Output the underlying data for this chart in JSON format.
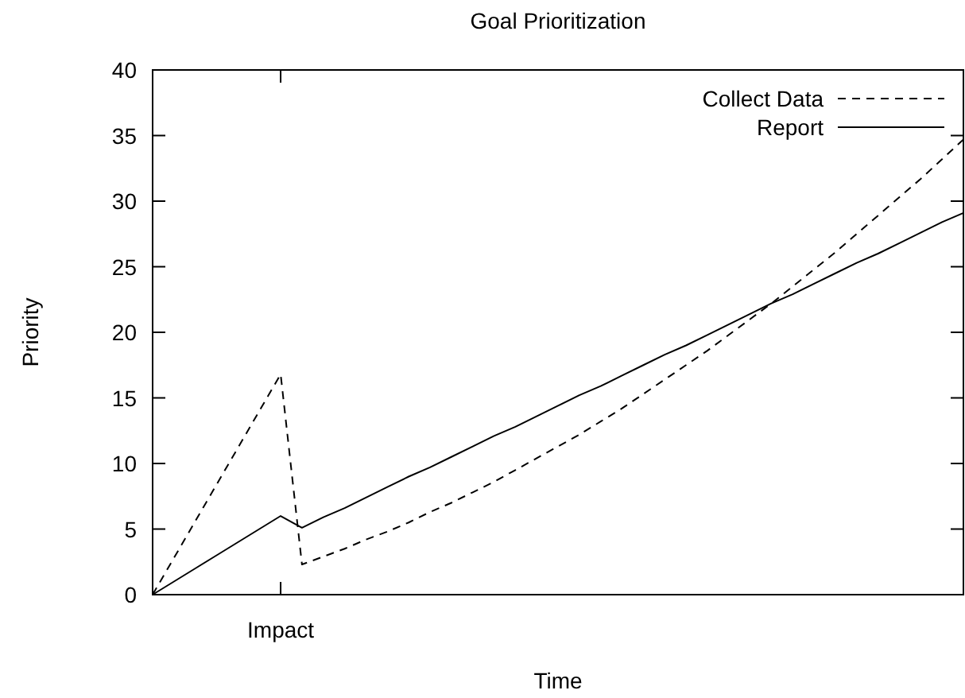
{
  "chart_data": {
    "type": "line",
    "title": "Goal Prioritization",
    "xlabel": "Time",
    "ylabel": "Priority",
    "categories": [
      null,
      null,
      null,
      null,
      null,
      null,
      "Impact",
      null,
      null,
      null,
      null,
      null,
      null,
      null,
      null,
      null,
      null,
      null,
      null,
      null,
      null,
      null,
      null,
      null,
      null,
      null,
      null,
      null,
      null,
      null,
      null,
      null,
      null,
      null,
      null,
      null,
      null,
      null,
      null
    ],
    "ylim": [
      0,
      40
    ],
    "yticks": [
      0,
      5,
      10,
      15,
      20,
      25,
      30,
      35,
      40
    ],
    "grid": false,
    "legend": "top right",
    "marker": "none",
    "series": [
      {
        "name": "Collect Data",
        "color": "#000000",
        "line_style": "dashed",
        "values": [
          0,
          2.8,
          5.6,
          8.4,
          11.2,
          14,
          16.8,
          2.3,
          2.9,
          3.5,
          4.2,
          4.8,
          5.5,
          6.3,
          7,
          7.8,
          8.6,
          9.5,
          10.4,
          11.3,
          12.2,
          13.2,
          14.2,
          15.3,
          16.4,
          17.5,
          18.6,
          19.8,
          21,
          22.2,
          23.5,
          24.8,
          26.1,
          27.5,
          28.9,
          30.3,
          31.7,
          33.2,
          34.7
        ]
      },
      {
        "name": "Report",
        "color": "#000000",
        "line_style": "solid",
        "values": [
          0,
          1,
          2,
          3,
          4,
          5,
          6,
          5.1,
          5.9,
          6.6,
          7.4,
          8.2,
          9,
          9.7,
          10.5,
          11.3,
          12.1,
          12.8,
          13.6,
          14.4,
          15.2,
          15.9,
          16.7,
          17.5,
          18.3,
          19,
          19.8,
          20.6,
          21.4,
          22.2,
          22.9,
          23.7,
          24.5,
          25.3,
          26,
          26.8,
          27.6,
          28.4,
          29.1
        ]
      }
    ]
  }
}
